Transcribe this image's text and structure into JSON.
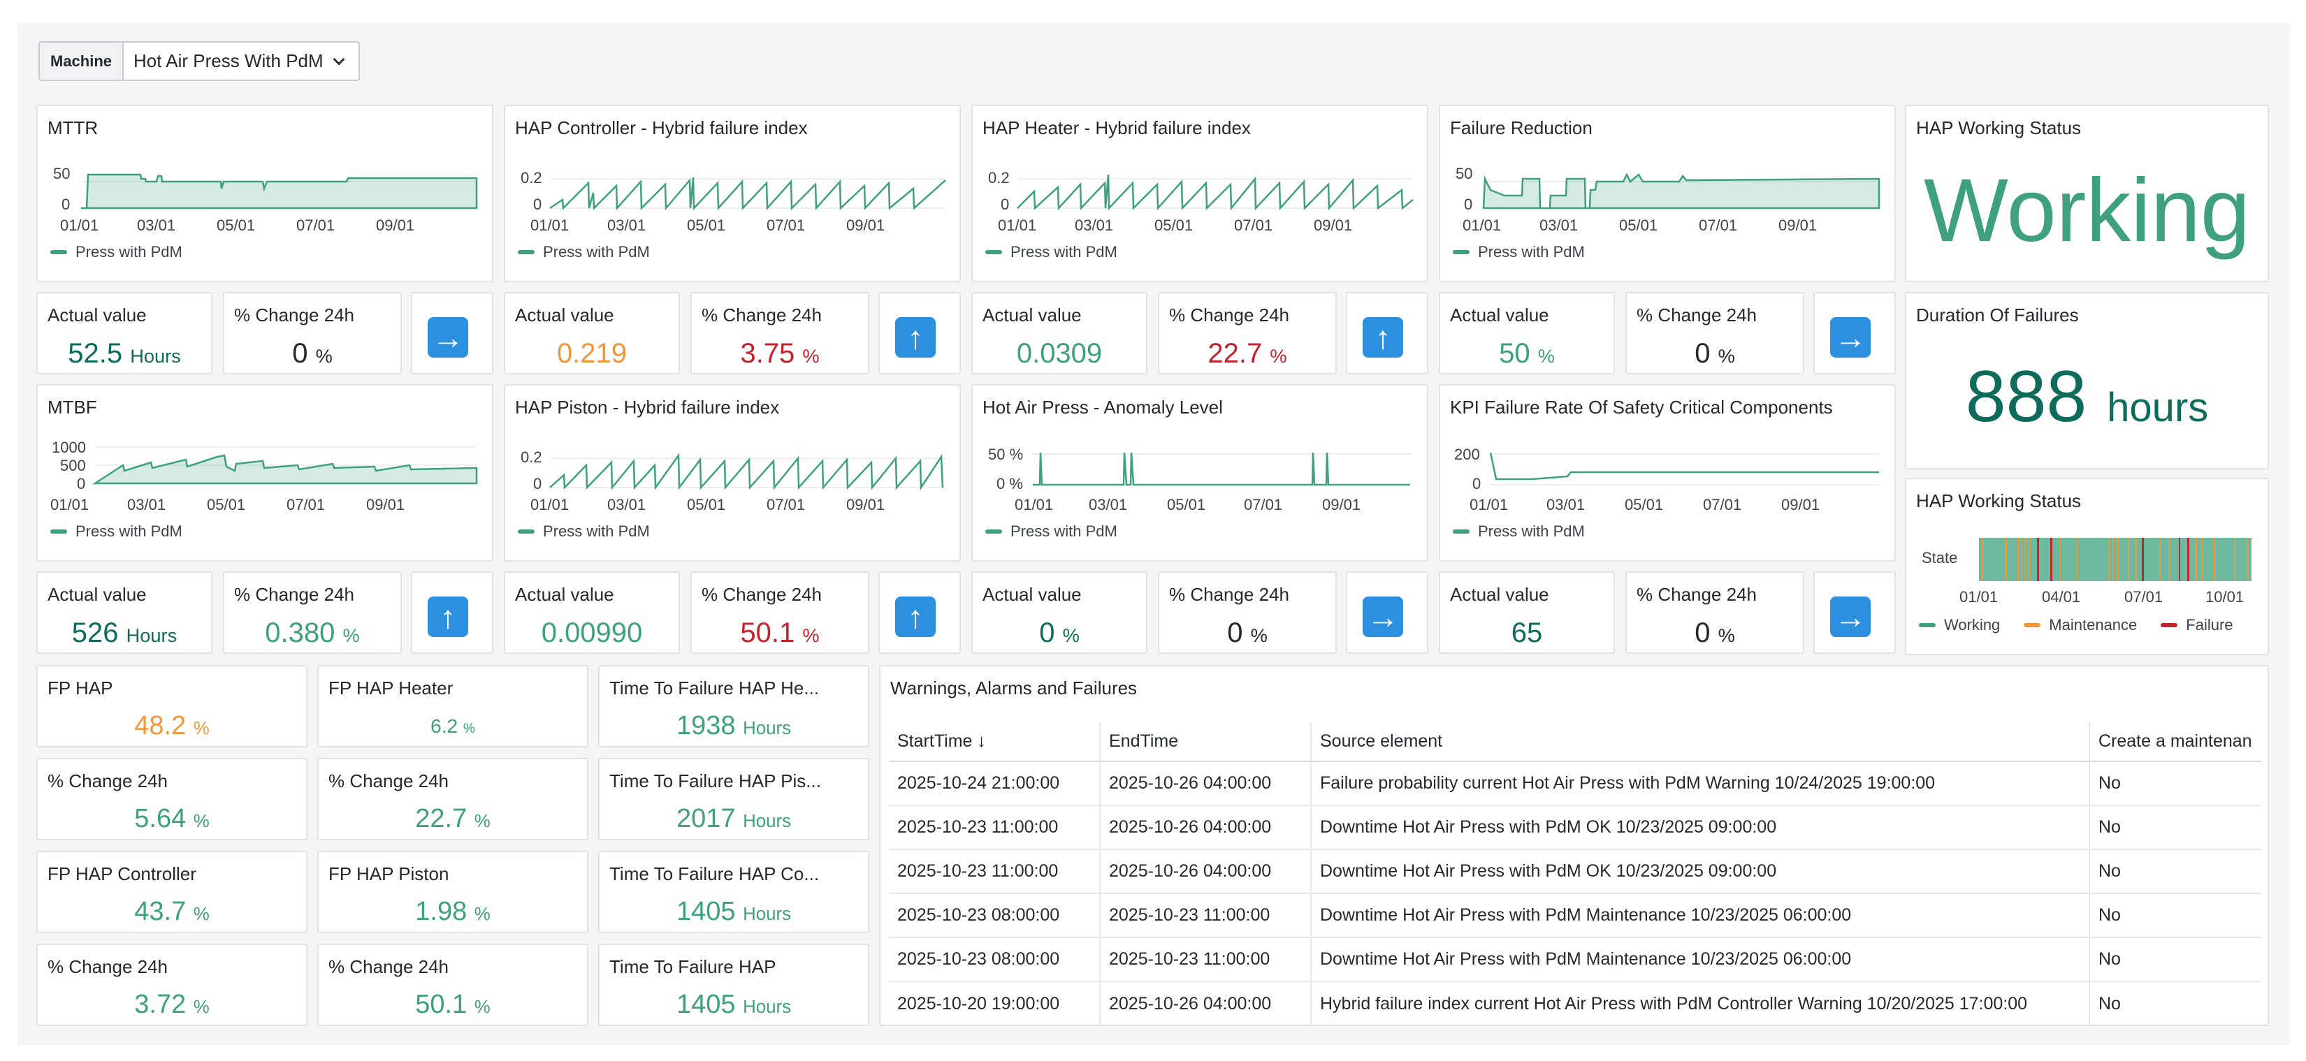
{
  "machine": {
    "label": "Machine",
    "value": "Hot Air Press With PdM"
  },
  "legend_label": "Press with PdM",
  "colors": {
    "accent": "#3ea07f",
    "teal": "#0e6b5b",
    "orange": "#f0973a",
    "red": "#c4222d",
    "arrow": "#2d8fe0"
  },
  "charts": {
    "mttr": {
      "title": "MTTR",
      "yticks": [
        "50",
        "0"
      ],
      "xticks": [
        "01/01",
        "03/01",
        "05/01",
        "07/01",
        "09/01"
      ]
    },
    "hap_controller": {
      "title": "HAP Controller - Hybrid failure index",
      "yticks": [
        "0.2",
        "0"
      ],
      "xticks": [
        "01/01",
        "03/01",
        "05/01",
        "07/01",
        "09/01"
      ]
    },
    "hap_heater": {
      "title": "HAP Heater - Hybrid failure index",
      "yticks": [
        "0.2",
        "0"
      ],
      "xticks": [
        "01/01",
        "03/01",
        "05/01",
        "07/01",
        "09/01"
      ]
    },
    "failure_reduction": {
      "title": "Failure Reduction",
      "yticks": [
        "50",
        "0"
      ],
      "xticks": [
        "01/01",
        "03/01",
        "05/01",
        "07/01",
        "09/01"
      ]
    },
    "mtbf": {
      "title": "MTBF",
      "yticks": [
        "1000",
        "500",
        "0"
      ],
      "xticks": [
        "01/01",
        "03/01",
        "05/01",
        "07/01",
        "09/01"
      ]
    },
    "hap_piston": {
      "title": "HAP Piston - Hybrid failure index",
      "yticks": [
        "0.2",
        "0"
      ],
      "xticks": [
        "01/01",
        "03/01",
        "05/01",
        "07/01",
        "09/01"
      ]
    },
    "anomaly": {
      "title": "Hot Air Press - Anomaly Level",
      "yticks": [
        "50 %",
        "0 %"
      ],
      "xticks": [
        "01/01",
        "03/01",
        "05/01",
        "07/01",
        "09/01"
      ]
    },
    "kpi": {
      "title": "KPI Failure Rate Of Safety Critical Components",
      "yticks": [
        "200",
        "0"
      ],
      "xticks": [
        "01/01",
        "03/01",
        "05/01",
        "07/01",
        "09/01"
      ]
    }
  },
  "stats_row1": [
    {
      "actual_label": "Actual value",
      "actual_value": "52.5",
      "actual_unit": "Hours",
      "change_label": "% Change 24h",
      "change_value": "0",
      "change_unit": "%",
      "arrow": "→"
    },
    {
      "actual_label": "Actual value",
      "actual_value": "0.219",
      "actual_unit": "",
      "change_label": "% Change 24h",
      "change_value": "3.75",
      "change_unit": "%",
      "arrow": "↑"
    },
    {
      "actual_label": "Actual value",
      "actual_value": "0.0309",
      "actual_unit": "",
      "change_label": "% Change 24h",
      "change_value": "22.7",
      "change_unit": "%",
      "arrow": "↑"
    },
    {
      "actual_label": "Actual value",
      "actual_value": "50",
      "actual_unit": "%",
      "change_label": "% Change 24h",
      "change_value": "0",
      "change_unit": "%",
      "arrow": "→"
    }
  ],
  "stats_row2": [
    {
      "actual_label": "Actual value",
      "actual_value": "526",
      "actual_unit": "Hours",
      "change_label": "% Change 24h",
      "change_value": "0.380",
      "change_unit": "%",
      "arrow": "↑"
    },
    {
      "actual_label": "Actual value",
      "actual_value": "0.00990",
      "actual_unit": "",
      "change_label": "% Change 24h",
      "change_value": "50.1",
      "change_unit": "%",
      "arrow": "↑"
    },
    {
      "actual_label": "Actual value",
      "actual_value": "0",
      "actual_unit": "%",
      "change_label": "% Change 24h",
      "change_value": "0",
      "change_unit": "%",
      "arrow": "→"
    },
    {
      "actual_label": "Actual value",
      "actual_value": "65",
      "actual_unit": "",
      "change_label": "% Change 24h",
      "change_value": "0",
      "change_unit": "%",
      "arrow": "→"
    }
  ],
  "working_status": {
    "title": "HAP Working Status",
    "value": "Working"
  },
  "duration": {
    "title": "Duration Of Failures",
    "value": "888",
    "unit": "hours"
  },
  "state_timeline": {
    "title": "HAP Working Status",
    "row_label": "State",
    "xticks": [
      "01/01",
      "04/01",
      "07/01",
      "10/01"
    ],
    "legend": [
      {
        "label": "Working",
        "color": "#3ea07f"
      },
      {
        "label": "Maintenance",
        "color": "#f0973a"
      },
      {
        "label": "Failure",
        "color": "#c4222d"
      }
    ]
  },
  "fp": [
    {
      "title": "FP HAP",
      "value": "48.2",
      "unit": "%"
    },
    {
      "title": "FP HAP Heater",
      "value": "6.2",
      "unit": "%"
    },
    {
      "title": "Time To Failure HAP He...",
      "value": "1938",
      "unit": "Hours"
    },
    {
      "title": "% Change 24h",
      "value": "5.64",
      "unit": "%"
    },
    {
      "title": "% Change 24h",
      "value": "22.7",
      "unit": "%"
    },
    {
      "title": "Time To Failure HAP Pis...",
      "value": "2017",
      "unit": "Hours"
    },
    {
      "title": "FP HAP Controller",
      "value": "43.7",
      "unit": "%"
    },
    {
      "title": "FP HAP Piston",
      "value": "1.98",
      "unit": "%"
    },
    {
      "title": "Time To Failure HAP Co...",
      "value": "1405",
      "unit": "Hours"
    },
    {
      "title": "% Change 24h",
      "value": "3.72",
      "unit": "%"
    },
    {
      "title": "% Change 24h",
      "value": "50.1",
      "unit": "%"
    },
    {
      "title": "Time To Failure HAP",
      "value": "1405",
      "unit": "Hours"
    }
  ],
  "alarms": {
    "title": "Warnings, Alarms and Failures",
    "columns": [
      "StartTime",
      "EndTime",
      "Source element",
      "Create a maintenan"
    ],
    "sort_icon": "↓",
    "rows": [
      [
        "2025-10-24 21:00:00",
        "2025-10-26 04:00:00",
        "Failure probability current Hot Air Press with PdM Warning 10/24/2025 19:00:00",
        "No"
      ],
      [
        "2025-10-23 11:00:00",
        "2025-10-26 04:00:00",
        "Downtime Hot Air Press with PdM OK 10/23/2025 09:00:00",
        "No"
      ],
      [
        "2025-10-23 11:00:00",
        "2025-10-26 04:00:00",
        "Downtime Hot Air Press with PdM OK 10/23/2025 09:00:00",
        "No"
      ],
      [
        "2025-10-23 08:00:00",
        "2025-10-23 11:00:00",
        "Downtime Hot Air Press with PdM Maintenance 10/23/2025 06:00:00",
        "No"
      ],
      [
        "2025-10-23 08:00:00",
        "2025-10-23 11:00:00",
        "Downtime Hot Air Press with PdM Maintenance 10/23/2025 06:00:00",
        "No"
      ],
      [
        "2025-10-20 19:00:00",
        "2025-10-26 04:00:00",
        "Hybrid failure index current Hot Air Press with PdM Controller Warning 10/20/2025 17:00:00",
        "No"
      ]
    ]
  }
}
